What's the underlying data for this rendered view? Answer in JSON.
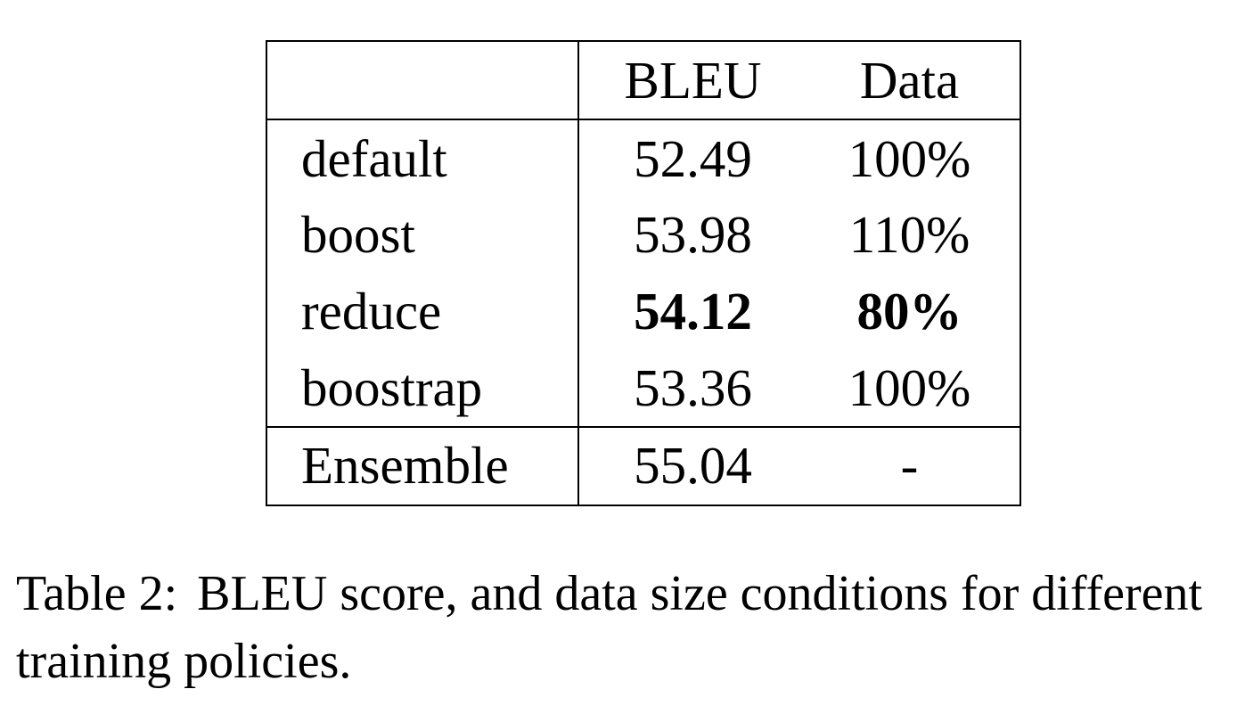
{
  "table": {
    "columns": [
      "",
      "BLEU",
      "Data"
    ],
    "rows": [
      {
        "label": "default",
        "bleu": "52.49",
        "data": "100%",
        "bold": false
      },
      {
        "label": "boost",
        "bleu": "53.98",
        "data": "110%",
        "bold": false
      },
      {
        "label": "reduce",
        "bleu": "54.12",
        "data": "80%",
        "bold": true
      },
      {
        "label": "boostrap",
        "bleu": "53.36",
        "data": "100%",
        "bold": false
      }
    ],
    "ensemble": {
      "label": "Ensemble",
      "bleu": "55.04",
      "data": "-"
    }
  },
  "caption": {
    "label": "Table 2:",
    "text": "BLEU score, and data size conditions for different training policies."
  }
}
